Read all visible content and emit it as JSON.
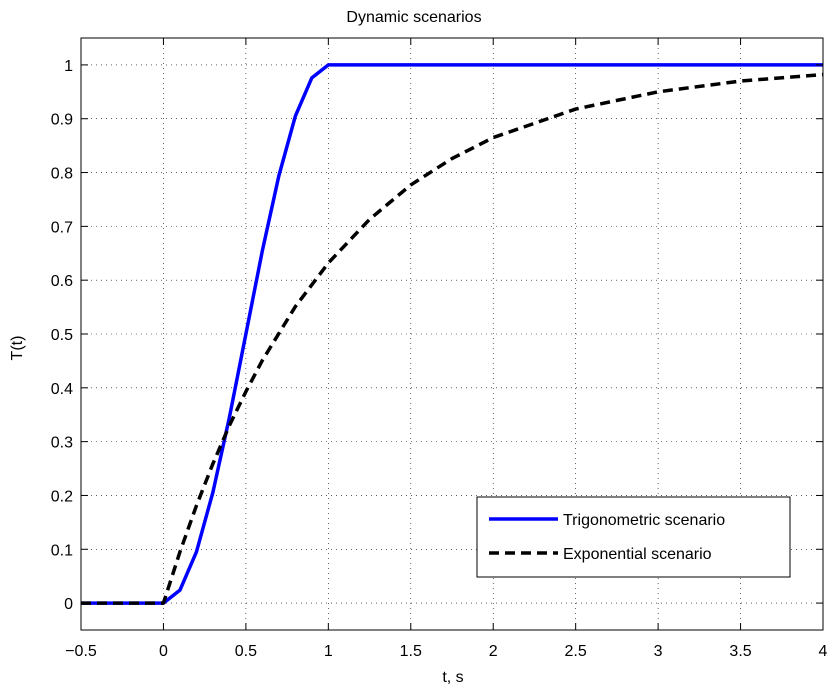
{
  "chart_data": {
    "type": "line",
    "title": "Dynamic scenarios",
    "xlabel": "t, s",
    "ylabel": "T(t)",
    "xlim": [
      -0.5,
      4
    ],
    "ylim": [
      -0.05,
      1.05
    ],
    "xticks": [
      -0.5,
      0,
      0.5,
      1,
      1.5,
      2,
      2.5,
      3,
      3.5,
      4
    ],
    "xtick_labels": [
      "−0.5",
      "0",
      "0.5",
      "1",
      "1.5",
      "2",
      "2.5",
      "3",
      "3.5",
      "4"
    ],
    "yticks": [
      0,
      0.1,
      0.2,
      0.3,
      0.4,
      0.5,
      0.6,
      0.7,
      0.8,
      0.9,
      1
    ],
    "ytick_labels": [
      "0",
      "0.1",
      "0.2",
      "0.3",
      "0.4",
      "0.5",
      "0.6",
      "0.7",
      "0.8",
      "0.9",
      "1"
    ],
    "grid": true,
    "legend_position": "bottom-right",
    "series": [
      {
        "name": "Trigonometric scenario",
        "color": "#0000ff",
        "style": "solid",
        "x": [
          -0.5,
          0,
          0.1,
          0.2,
          0.3,
          0.4,
          0.5,
          0.6,
          0.7,
          0.8,
          0.9,
          1.0,
          1.5,
          2,
          2.5,
          3,
          3.5,
          4
        ],
        "y": [
          0,
          0,
          0.024,
          0.095,
          0.206,
          0.345,
          0.5,
          0.655,
          0.794,
          0.905,
          0.976,
          1,
          1,
          1,
          1,
          1,
          1,
          1
        ]
      },
      {
        "name": "Exponential scenario",
        "color": "#000000",
        "style": "dashed",
        "x": [
          -0.5,
          0,
          0.1,
          0.2,
          0.3,
          0.4,
          0.5,
          0.6,
          0.8,
          1.0,
          1.25,
          1.5,
          1.75,
          2.0,
          2.5,
          3.0,
          3.5,
          4.0
        ],
        "y": [
          0,
          0,
          0.095,
          0.181,
          0.259,
          0.33,
          0.393,
          0.451,
          0.551,
          0.632,
          0.713,
          0.777,
          0.826,
          0.865,
          0.918,
          0.95,
          0.97,
          0.982
        ]
      }
    ]
  }
}
